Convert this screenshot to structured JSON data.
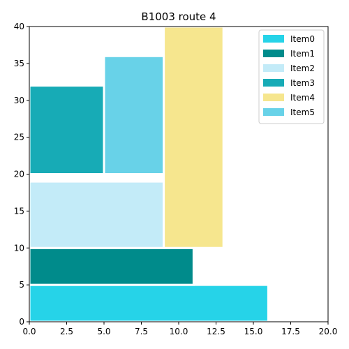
{
  "chart_data": {
    "type": "bar",
    "title": "B1003 route 4",
    "xlabel": "",
    "ylabel": "",
    "xlim": [
      0,
      20
    ],
    "ylim": [
      0,
      40
    ],
    "x_ticks": [
      "0.0",
      "2.5",
      "5.0",
      "7.5",
      "10.0",
      "12.5",
      "15.0",
      "17.5",
      "20.0"
    ],
    "y_ticks": [
      "0",
      "5",
      "10",
      "15",
      "20",
      "25",
      "30",
      "35",
      "40"
    ],
    "legend_position": "top-right",
    "grid": false,
    "series": [
      {
        "name": "Item0",
        "color": "#26d3e8",
        "x0": 0,
        "x1": 16,
        "y0": 0,
        "y1": 5
      },
      {
        "name": "Item1",
        "color": "#008b8b",
        "x0": 0,
        "x1": 11,
        "y0": 5,
        "y1": 10
      },
      {
        "name": "Item2",
        "color": "#c3ebf8",
        "x0": 0,
        "x1": 9,
        "y0": 10,
        "y1": 19
      },
      {
        "name": "Item3",
        "color": "#17abb6",
        "x0": 0,
        "x1": 5,
        "y0": 20,
        "y1": 32
      },
      {
        "name": "Item4",
        "color": "#f6e68e",
        "x0": 9,
        "x1": 13,
        "y0": 10,
        "y1": 40
      },
      {
        "name": "Item5",
        "color": "#68d2e8",
        "x0": 5,
        "x1": 9,
        "y0": 20,
        "y1": 36
      }
    ]
  }
}
